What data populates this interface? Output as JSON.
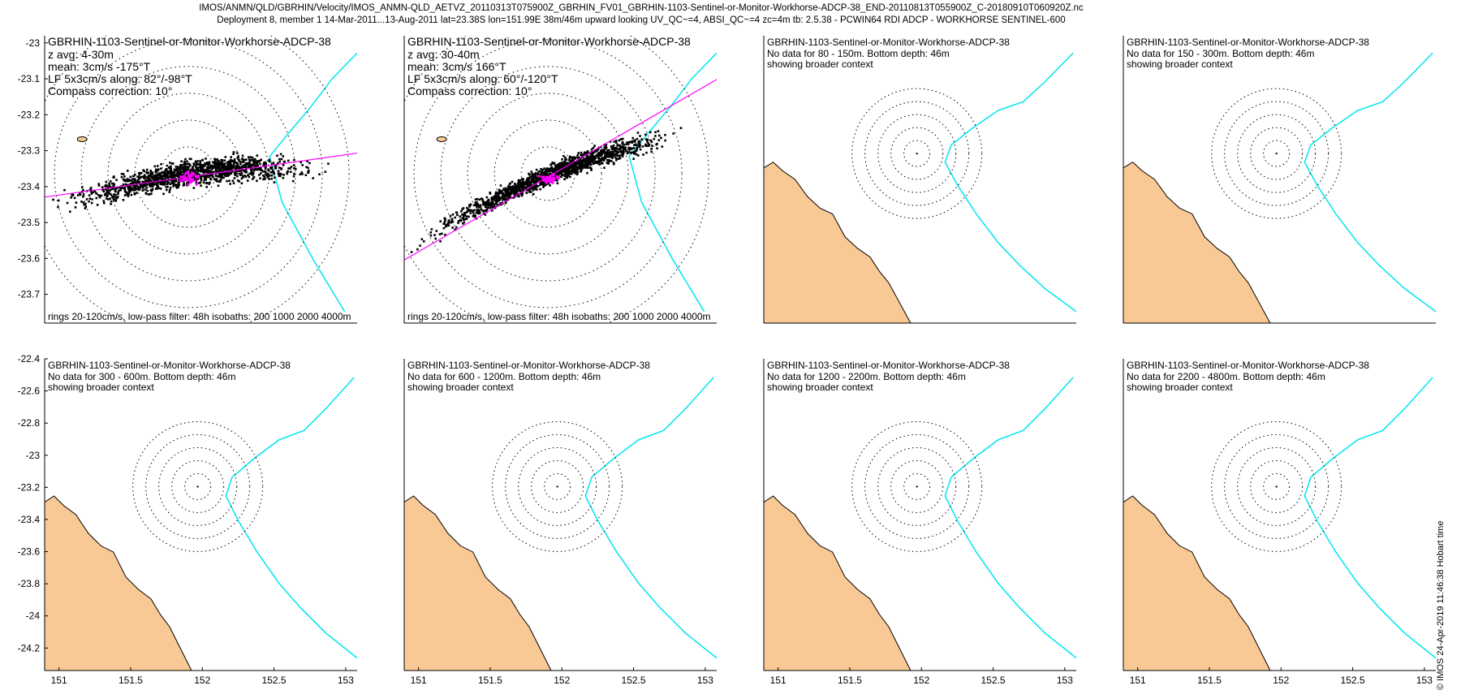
{
  "header": {
    "line1": "IMOS/ANMN/QLD/GBRHIN/Velocity/IMOS_ANMN-QLD_AETVZ_20110313T075900Z_GBRHIN_FV01_GBRHIN-1103-Sentinel-or-Monitor-Workhorse-ADCP-38_END-20110813T055900Z_C-20180910T060920Z.nc",
    "line2": "Deployment 8, member 1 14-Mar-2011...13-Aug-2011 lat=23.38S lon=151.99E 38m/46m upward looking UV_QC~=4, ABSI_QC~=4 zc=4m tb: 2.5.38 - PCWIN64 RDI ADCP - WORKHORSE SENTINEL-600"
  },
  "stamp": "© IMOS 24-Apr-2019 11:46:38 Hobart time",
  "colors": {
    "land": "#f9c995",
    "isobath": "#00e5ee",
    "magenta": "#ff00ff",
    "scatter": "#000000"
  },
  "chart_data": [
    {
      "type": "scatter",
      "title": "GBRHIN-1103-Sentinel-or-Monitor-Workhorse-ADCP-38",
      "lines": [
        "z avg: 4-30m",
        "mean: 3cm/s -175°T",
        "LF 5x3cm/s along: 82°/-98°T",
        "Compass correction: 10°"
      ],
      "footer": "rings 20-120cm/s, low-pass filter: 48h isobaths: 200 1000 2000 4000m",
      "has_data": true,
      "cloud_angle_deg": 8,
      "line_bearing_deg": 82
    },
    {
      "type": "scatter",
      "title": "GBRHIN-1103-Sentinel-or-Monitor-Workhorse-ADCP-38",
      "lines": [
        "z avg: 30-40m",
        "mean: 3cm/s 166°T",
        "LF 5x3cm/s along: 60°/-120°T",
        "Compass correction: 10°"
      ],
      "footer": "rings 20-120cm/s, low-pass filter: 48h isobaths: 200 1000 2000 4000m",
      "has_data": true,
      "cloud_angle_deg": 22,
      "line_bearing_deg": 60
    },
    {
      "type": "scatter",
      "title": "GBRHIN-1103-Sentinel-or-Monitor-Workhorse-ADCP-38",
      "lines": [
        "No data for 80 - 150m. Bottom depth: 46m",
        "showing broader context"
      ],
      "has_data": false
    },
    {
      "type": "scatter",
      "title": "GBRHIN-1103-Sentinel-or-Monitor-Workhorse-ADCP-38",
      "lines": [
        "No data for 150 - 300m. Bottom depth: 46m",
        "showing broader context"
      ],
      "has_data": false
    },
    {
      "type": "scatter",
      "title": "GBRHIN-1103-Sentinel-or-Monitor-Workhorse-ADCP-38",
      "lines": [
        "No data for 300 - 600m. Bottom depth: 46m",
        "showing broader context"
      ],
      "has_data": false
    },
    {
      "type": "scatter",
      "title": "GBRHIN-1103-Sentinel-or-Monitor-Workhorse-ADCP-38",
      "lines": [
        "No data for 600 - 1200m. Bottom depth: 46m",
        "showing broader context"
      ],
      "has_data": false
    },
    {
      "type": "scatter",
      "title": "GBRHIN-1103-Sentinel-or-Monitor-Workhorse-ADCP-38",
      "lines": [
        "No data for 1200 - 2200m. Bottom depth: 46m",
        "showing broader context"
      ],
      "has_data": false
    },
    {
      "type": "scatter",
      "title": "GBRHIN-1103-Sentinel-or-Monitor-Workhorse-ADCP-38",
      "lines": [
        "No data for 2200 - 4800m. Bottom depth: 46m",
        "showing broader context"
      ],
      "has_data": false
    }
  ],
  "axes": {
    "top_row": {
      "yticks": [
        -23,
        -23.1,
        -23.2,
        -23.3,
        -23.4,
        -23.5,
        -23.6,
        -23.7
      ],
      "ylim": [
        -23.78,
        -22.98
      ]
    },
    "bottom_row": {
      "yticks": [
        -22.4,
        -22.6,
        -22.8,
        -23,
        -23.2,
        -23.4,
        -23.6,
        -23.8,
        -24,
        -24.2
      ],
      "ylim": [
        -24.34,
        -22.4
      ],
      "xticks": [
        151,
        151.5,
        152,
        152.5,
        153
      ],
      "xlim": [
        150.9,
        153.08
      ]
    }
  }
}
